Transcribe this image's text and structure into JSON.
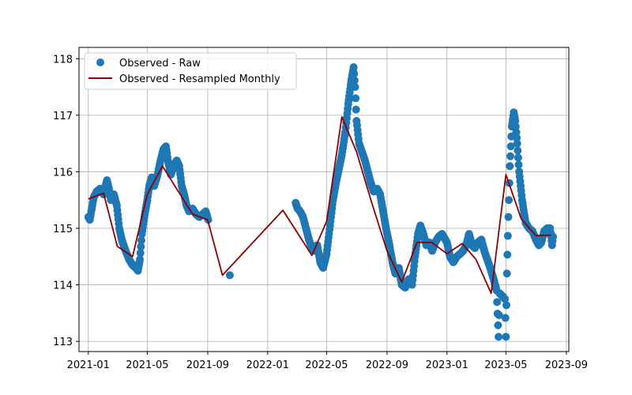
{
  "chart_data": {
    "type": "line",
    "title": "",
    "xlabel": "",
    "ylabel": "",
    "grid": true,
    "legend_position": "top-left",
    "xlim": [
      "2020-12-13",
      "2023-09-06"
    ],
    "ylim": [
      112.82,
      118.2
    ],
    "x_ticks": [
      "2021-01",
      "2021-05",
      "2021-09",
      "2022-01",
      "2022-05",
      "2022-09",
      "2023-01",
      "2023-05",
      "2023-09"
    ],
    "y_ticks": [
      113,
      114,
      115,
      116,
      117,
      118
    ],
    "colors": {
      "raw": "#1f77b4",
      "monthly": "#8b0000",
      "grid": "#b0b0b0"
    },
    "series": [
      {
        "name": "Observed - Raw",
        "kind": "scatter",
        "points": [
          [
            "2021-01-01",
            115.2
          ],
          [
            "2021-01-04",
            115.15
          ],
          [
            "2021-01-08",
            115.35
          ],
          [
            "2021-01-12",
            115.55
          ],
          [
            "2021-01-18",
            115.65
          ],
          [
            "2021-01-25",
            115.7
          ],
          [
            "2021-02-01",
            115.6
          ],
          [
            "2021-02-05",
            115.75
          ],
          [
            "2021-02-08",
            115.85
          ],
          [
            "2021-02-12",
            115.7
          ],
          [
            "2021-02-16",
            115.5
          ],
          [
            "2021-02-22",
            115.6
          ],
          [
            "2021-02-28",
            115.4
          ],
          [
            "2021-03-05",
            115.0
          ],
          [
            "2021-03-10",
            114.8
          ],
          [
            "2021-03-18",
            114.6
          ],
          [
            "2021-03-25",
            114.45
          ],
          [
            "2021-04-01",
            114.35
          ],
          [
            "2021-04-08",
            114.3
          ],
          [
            "2021-04-12",
            114.25
          ],
          [
            "2021-04-16",
            114.45
          ],
          [
            "2021-04-20",
            114.9
          ],
          [
            "2021-04-25",
            115.2
          ],
          [
            "2021-05-01",
            115.5
          ],
          [
            "2021-05-05",
            115.75
          ],
          [
            "2021-05-10",
            115.9
          ],
          [
            "2021-05-15",
            115.75
          ],
          [
            "2021-05-22",
            115.95
          ],
          [
            "2021-05-28",
            116.2
          ],
          [
            "2021-06-03",
            116.4
          ],
          [
            "2021-06-08",
            116.45
          ],
          [
            "2021-06-12",
            116.2
          ],
          [
            "2021-06-18",
            115.95
          ],
          [
            "2021-06-24",
            116.1
          ],
          [
            "2021-06-30",
            116.2
          ],
          [
            "2021-07-05",
            116.1
          ],
          [
            "2021-07-10",
            115.75
          ],
          [
            "2021-07-15",
            115.6
          ],
          [
            "2021-07-20",
            115.4
          ],
          [
            "2021-07-25",
            115.3
          ],
          [
            "2021-08-01",
            115.35
          ],
          [
            "2021-08-08",
            115.25
          ],
          [
            "2021-08-15",
            115.2
          ],
          [
            "2021-08-22",
            115.25
          ],
          [
            "2021-08-28",
            115.3
          ],
          [
            "2021-09-02",
            115.15
          ],
          [
            "2021-10-16",
            114.17
          ],
          [
            "2022-02-27",
            115.45
          ],
          [
            "2022-03-03",
            115.35
          ],
          [
            "2022-03-08",
            115.3
          ],
          [
            "2022-03-14",
            115.2
          ],
          [
            "2022-03-20",
            115.0
          ],
          [
            "2022-03-26",
            114.8
          ],
          [
            "2022-04-01",
            114.65
          ],
          [
            "2022-04-07",
            114.6
          ],
          [
            "2022-04-12",
            114.7
          ],
          [
            "2022-04-18",
            114.4
          ],
          [
            "2022-04-24",
            114.3
          ],
          [
            "2022-05-01",
            114.55
          ],
          [
            "2022-05-08",
            115.05
          ],
          [
            "2022-05-14",
            115.5
          ],
          [
            "2022-05-20",
            115.8
          ],
          [
            "2022-05-26",
            116.05
          ],
          [
            "2022-06-01",
            116.3
          ],
          [
            "2022-06-08",
            116.7
          ],
          [
            "2022-06-14",
            117.2
          ],
          [
            "2022-06-20",
            117.6
          ],
          [
            "2022-06-25",
            117.85
          ],
          [
            "2022-06-28",
            117.5
          ],
          [
            "2022-07-01",
            116.9
          ],
          [
            "2022-07-06",
            116.5
          ],
          [
            "2022-07-12",
            116.35
          ],
          [
            "2022-07-18",
            116.2
          ],
          [
            "2022-07-24",
            116.0
          ],
          [
            "2022-07-30",
            115.8
          ],
          [
            "2022-08-05",
            115.65
          ],
          [
            "2022-08-12",
            115.7
          ],
          [
            "2022-08-18",
            115.6
          ],
          [
            "2022-08-24",
            115.3
          ],
          [
            "2022-08-30",
            115.0
          ],
          [
            "2022-09-06",
            114.7
          ],
          [
            "2022-09-12",
            114.4
          ],
          [
            "2022-09-18",
            114.2
          ],
          [
            "2022-09-25",
            114.3
          ],
          [
            "2022-10-01",
            114.0
          ],
          [
            "2022-10-08",
            113.95
          ],
          [
            "2022-10-15",
            114.1
          ],
          [
            "2022-10-22",
            114.0
          ],
          [
            "2022-10-28",
            114.5
          ],
          [
            "2022-11-03",
            114.9
          ],
          [
            "2022-11-08",
            115.05
          ],
          [
            "2022-11-14",
            114.9
          ],
          [
            "2022-11-20",
            114.7
          ],
          [
            "2022-11-26",
            114.75
          ],
          [
            "2022-12-02",
            114.6
          ],
          [
            "2022-12-08",
            114.75
          ],
          [
            "2022-12-15",
            114.85
          ],
          [
            "2022-12-22",
            114.9
          ],
          [
            "2023-01-01",
            114.75
          ],
          [
            "2023-01-07",
            114.5
          ],
          [
            "2023-01-14",
            114.4
          ],
          [
            "2023-01-21",
            114.5
          ],
          [
            "2023-01-28",
            114.55
          ],
          [
            "2023-02-03",
            114.6
          ],
          [
            "2023-02-09",
            114.7
          ],
          [
            "2023-02-15",
            114.9
          ],
          [
            "2023-02-21",
            114.7
          ],
          [
            "2023-02-27",
            114.65
          ],
          [
            "2023-03-05",
            114.75
          ],
          [
            "2023-03-12",
            114.8
          ],
          [
            "2023-03-18",
            114.6
          ],
          [
            "2023-03-24",
            114.45
          ],
          [
            "2023-03-30",
            114.3
          ],
          [
            "2023-04-06",
            114.1
          ],
          [
            "2023-04-12",
            113.9
          ],
          [
            "2023-04-16",
            113.08
          ],
          [
            "2023-04-18",
            113.85
          ],
          [
            "2023-04-24",
            113.8
          ],
          [
            "2023-04-29",
            113.75
          ],
          [
            "2023-05-01",
            113.08
          ],
          [
            "2023-05-03",
            114.2
          ],
          [
            "2023-05-06",
            115.2
          ],
          [
            "2023-05-09",
            116.1
          ],
          [
            "2023-05-13",
            116.8
          ],
          [
            "2023-05-17",
            117.05
          ],
          [
            "2023-05-20",
            116.9
          ],
          [
            "2023-05-24",
            116.5
          ],
          [
            "2023-05-28",
            116.0
          ],
          [
            "2023-06-03",
            115.5
          ],
          [
            "2023-06-10",
            115.1
          ],
          [
            "2023-06-17",
            115.0
          ],
          [
            "2023-06-24",
            114.95
          ],
          [
            "2023-07-01",
            114.8
          ],
          [
            "2023-07-07",
            114.7
          ],
          [
            "2023-07-12",
            114.75
          ],
          [
            "2023-07-18",
            114.95
          ],
          [
            "2023-07-24",
            115.0
          ],
          [
            "2023-07-30",
            115.0
          ],
          [
            "2023-08-03",
            114.7
          ],
          [
            "2023-08-05",
            114.85
          ]
        ]
      },
      {
        "name": "Observed - Resampled Monthly",
        "kind": "line",
        "points": [
          [
            "2021-01-01",
            115.52
          ],
          [
            "2021-02-01",
            115.62
          ],
          [
            "2021-03-01",
            114.68
          ],
          [
            "2021-04-01",
            114.5
          ],
          [
            "2021-05-01",
            115.6
          ],
          [
            "2021-06-01",
            116.1
          ],
          [
            "2021-07-01",
            115.68
          ],
          [
            "2021-08-01",
            115.25
          ],
          [
            "2021-09-01",
            115.15
          ],
          [
            "2021-10-01",
            114.17
          ],
          [
            "2022-02-01",
            115.32
          ],
          [
            "2022-04-01",
            114.52
          ],
          [
            "2022-05-01",
            115.12
          ],
          [
            "2022-06-01",
            116.97
          ],
          [
            "2022-07-01",
            116.35
          ],
          [
            "2022-08-01",
            115.45
          ],
          [
            "2022-09-01",
            114.6
          ],
          [
            "2022-10-01",
            114.05
          ],
          [
            "2022-11-01",
            114.75
          ],
          [
            "2022-12-01",
            114.75
          ],
          [
            "2023-01-01",
            114.55
          ],
          [
            "2023-02-01",
            114.73
          ],
          [
            "2023-03-01",
            114.45
          ],
          [
            "2023-04-01",
            113.85
          ],
          [
            "2023-05-01",
            115.95
          ],
          [
            "2023-06-01",
            115.17
          ],
          [
            "2023-07-01",
            114.87
          ],
          [
            "2023-08-01",
            114.88
          ]
        ]
      }
    ]
  }
}
